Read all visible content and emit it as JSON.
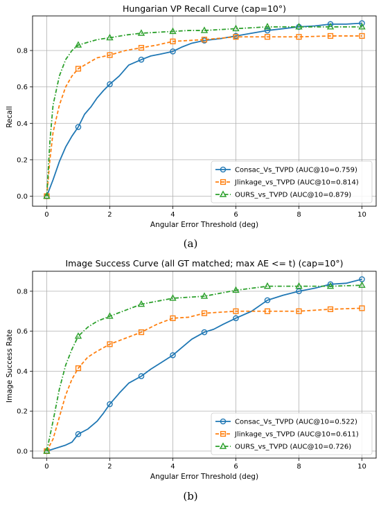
{
  "chart_data": [
    {
      "type": "line",
      "title": "Hungarian VP Recall Curve (cap=10°)",
      "xlabel": "Angular Error Threshold (deg)",
      "ylabel": "Recall",
      "xlim": [
        -0.45,
        10.45
      ],
      "ylim": [
        -0.055,
        0.99
      ],
      "xticks": [
        "0",
        "2",
        "4",
        "6",
        "8",
        "10"
      ],
      "yticks": [
        "0.0",
        "0.2",
        "0.4",
        "0.6",
        "0.8"
      ],
      "grid": true,
      "legend_position": "lower-right",
      "caption": "(a)",
      "series": [
        {
          "name": "Consac_Vs_TVPD (AUC@10=0.759)",
          "color": "#1f77b4",
          "linestyle": "solid",
          "marker": "circle",
          "x": [
            0,
            0.2,
            0.4,
            0.6,
            0.8,
            1.0,
            1.2,
            1.4,
            1.6,
            1.8,
            2.0,
            2.3,
            2.6,
            3.0,
            3.3,
            3.6,
            4.0,
            4.3,
            4.6,
            5.0,
            5.5,
            6.0,
            6.5,
            7.0,
            7.5,
            8.0,
            8.5,
            9.0,
            9.5,
            10.0
          ],
          "y": [
            0.0,
            0.09,
            0.19,
            0.27,
            0.33,
            0.38,
            0.45,
            0.49,
            0.54,
            0.58,
            0.615,
            0.66,
            0.72,
            0.75,
            0.77,
            0.78,
            0.795,
            0.82,
            0.84,
            0.855,
            0.865,
            0.88,
            0.895,
            0.91,
            0.92,
            0.93,
            0.935,
            0.945,
            0.945,
            0.95
          ],
          "marker_x": [
            0,
            1,
            2,
            3,
            4,
            5,
            6,
            7,
            8,
            9,
            10
          ]
        },
        {
          "name": "Jlinkage_vs_TVPD (AUC@10=0.814)",
          "color": "#ff7f0e",
          "linestyle": "dashed",
          "marker": "square",
          "x": [
            0,
            0.1,
            0.2,
            0.4,
            0.6,
            0.8,
            1.0,
            1.3,
            1.6,
            2.0,
            2.5,
            3.0,
            3.5,
            4.0,
            4.5,
            5.0,
            6.0,
            7.0,
            8.0,
            9.0,
            10.0
          ],
          "y": [
            0.0,
            0.2,
            0.35,
            0.5,
            0.6,
            0.66,
            0.7,
            0.73,
            0.76,
            0.775,
            0.8,
            0.815,
            0.83,
            0.85,
            0.855,
            0.86,
            0.875,
            0.875,
            0.875,
            0.88,
            0.88
          ],
          "marker_x": [
            0,
            1,
            2,
            3,
            4,
            5,
            6,
            7,
            8,
            9,
            10
          ]
        },
        {
          "name": "OURS_vs_TVPD (AUC@10=0.879)",
          "color": "#2ca02c",
          "linestyle": "dashdot",
          "marker": "triangle",
          "x": [
            0,
            0.1,
            0.2,
            0.4,
            0.6,
            0.8,
            1.0,
            1.3,
            1.6,
            2.0,
            2.5,
            3.0,
            3.5,
            4.0,
            4.5,
            5.0,
            6.0,
            7.0,
            8.0,
            9.0,
            10.0
          ],
          "y": [
            0.0,
            0.3,
            0.5,
            0.66,
            0.75,
            0.8,
            0.83,
            0.845,
            0.86,
            0.87,
            0.885,
            0.895,
            0.9,
            0.905,
            0.91,
            0.91,
            0.92,
            0.93,
            0.93,
            0.93,
            0.93
          ],
          "marker_x": [
            0,
            1,
            2,
            3,
            4,
            5,
            6,
            7,
            8,
            9,
            10
          ]
        }
      ]
    },
    {
      "type": "line",
      "title": "Image Success Curve (all GT matched; max AE <= t) (cap=10°)",
      "xlabel": "Angular Error Threshold (deg)",
      "ylabel": "Image Success Rate",
      "xlim": [
        -0.45,
        10.45
      ],
      "ylim": [
        -0.035,
        0.9
      ],
      "xticks": [
        "0",
        "2",
        "4",
        "6",
        "8",
        "10"
      ],
      "yticks": [
        "0.0",
        "0.2",
        "0.4",
        "0.6",
        "0.8"
      ],
      "grid": true,
      "legend_position": "lower-right",
      "caption": "(b)",
      "series": [
        {
          "name": "Consac_Vs_TVPD (AUC@10=0.522)",
          "color": "#1f77b4",
          "linestyle": "solid",
          "marker": "circle",
          "x": [
            0,
            0.2,
            0.4,
            0.6,
            0.8,
            1.0,
            1.3,
            1.6,
            1.8,
            2.0,
            2.3,
            2.6,
            3.0,
            3.3,
            3.6,
            4.0,
            4.3,
            4.6,
            5.0,
            5.3,
            5.6,
            6.0,
            6.5,
            7.0,
            7.5,
            8.0,
            8.5,
            9.0,
            9.5,
            10.0
          ],
          "y": [
            0.0,
            0.01,
            0.02,
            0.03,
            0.045,
            0.085,
            0.11,
            0.15,
            0.19,
            0.235,
            0.29,
            0.34,
            0.375,
            0.41,
            0.44,
            0.48,
            0.52,
            0.56,
            0.595,
            0.61,
            0.635,
            0.665,
            0.7,
            0.755,
            0.78,
            0.8,
            0.815,
            0.835,
            0.84,
            0.86
          ],
          "marker_x": [
            0,
            1,
            2,
            3,
            4,
            5,
            6,
            7,
            8,
            9,
            10
          ]
        },
        {
          "name": "Jlinkage_vs_TVPD (AUC@10=0.611)",
          "color": "#ff7f0e",
          "linestyle": "dashed",
          "marker": "square",
          "x": [
            0,
            0.2,
            0.4,
            0.6,
            0.8,
            1.0,
            1.3,
            1.6,
            2.0,
            2.5,
            3.0,
            3.5,
            4.0,
            4.5,
            5.0,
            6.0,
            7.0,
            8.0,
            9.0,
            10.0
          ],
          "y": [
            0.0,
            0.06,
            0.17,
            0.28,
            0.36,
            0.415,
            0.47,
            0.5,
            0.535,
            0.565,
            0.595,
            0.635,
            0.665,
            0.67,
            0.69,
            0.7,
            0.7,
            0.7,
            0.71,
            0.715
          ],
          "marker_x": [
            0,
            1,
            2,
            3,
            4,
            5,
            6,
            7,
            8,
            9,
            10
          ]
        },
        {
          "name": "OURS_vs_TVPD (AUC@10=0.726)",
          "color": "#2ca02c",
          "linestyle": "dashdot",
          "marker": "triangle",
          "x": [
            0,
            0.2,
            0.4,
            0.6,
            0.8,
            1.0,
            1.3,
            1.6,
            2.0,
            2.5,
            3.0,
            3.5,
            4.0,
            4.5,
            5.0,
            6.0,
            7.0,
            8.0,
            9.0,
            10.0
          ],
          "y": [
            0.0,
            0.15,
            0.31,
            0.43,
            0.51,
            0.575,
            0.62,
            0.65,
            0.675,
            0.705,
            0.735,
            0.75,
            0.765,
            0.77,
            0.775,
            0.805,
            0.825,
            0.825,
            0.825,
            0.83
          ],
          "marker_x": [
            0,
            1,
            2,
            3,
            4,
            5,
            6,
            7,
            8,
            9,
            10
          ]
        }
      ]
    }
  ]
}
